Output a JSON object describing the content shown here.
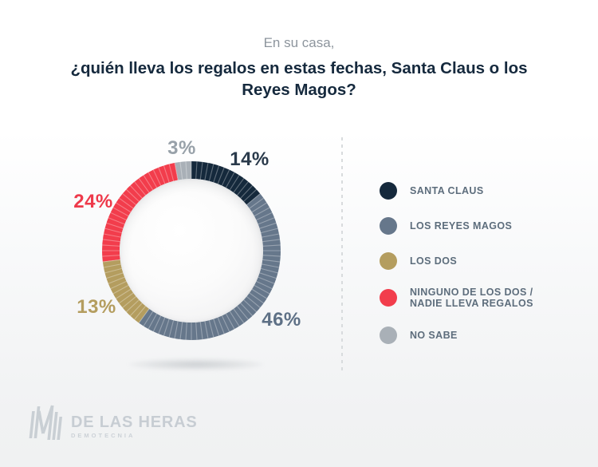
{
  "title": {
    "subtitle": "En su casa,",
    "question": "¿quién lleva los regalos en estas fechas, Santa Claus o los Reyes Magos?"
  },
  "chart_data": {
    "type": "pie",
    "subtype": "donut",
    "title": "En su casa, ¿quién lleva los regalos en estas fechas, Santa Claus o los Reyes Magos?",
    "direction": "clockwise",
    "start_angle_deg": 0,
    "tick_interval_percent": 1,
    "legend_position": "right",
    "segments": [
      {
        "label": "SANTA CLAUS",
        "value": 14,
        "display": "14%",
        "color": "#15293C",
        "label_color": "#2A3A4B"
      },
      {
        "label": "LOS REYES MAGOS",
        "value": 46,
        "display": "46%",
        "color": "#66778B",
        "label_color": "#5E7086"
      },
      {
        "label": "LOS DOS",
        "value": 13,
        "display": "13%",
        "color": "#B49D5F",
        "label_color": "#B49D5F"
      },
      {
        "label": "NINGUNO DE LOS DOS / NADIE LLEVA REGALOS",
        "value": 24,
        "display": "24%",
        "color": "#F23D4C",
        "label_color": "#EE3A4B"
      },
      {
        "label": "NO SABE",
        "value": 3,
        "display": "3%",
        "color": "#A9B0B7",
        "label_color": "#98A1A9"
      }
    ]
  },
  "legend": {
    "items": [
      {
        "label": "SANTA CLAUS",
        "color": "#15293C"
      },
      {
        "label": "LOS REYES MAGOS",
        "color": "#66778B"
      },
      {
        "label": "LOS DOS",
        "color": "#B49D5F"
      },
      {
        "label": "NINGUNO DE LOS DOS /\nNADIE LLEVA REGALOS",
        "color": "#F23D4C"
      },
      {
        "label": "NO SABE",
        "color": "#A9B0B7"
      }
    ]
  },
  "footer": {
    "brand": "DE LAS HERAS",
    "brand_sub": "DEMOTECNIA",
    "logo_icon": "de-las-heras-mark"
  }
}
